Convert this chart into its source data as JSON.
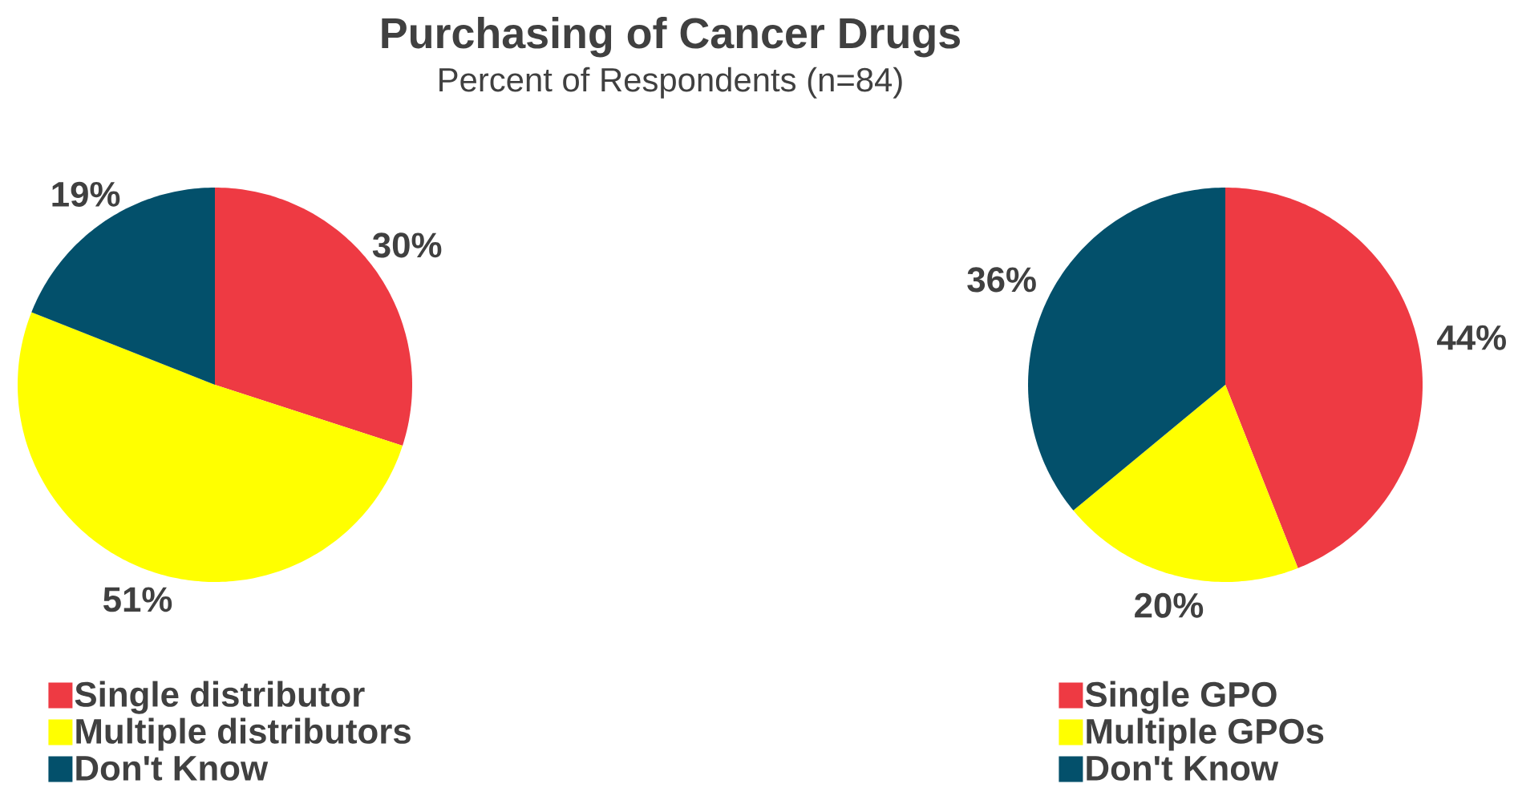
{
  "chart_data": [
    {
      "type": "pie",
      "title": "Purchasing of Cancer Drugs",
      "subtitle": "Percent of Respondents (n=84)",
      "categories": [
        "Single distributor",
        "Multiple distributors",
        "Don't Know"
      ],
      "values": [
        30,
        51,
        19
      ],
      "colors": [
        "#ee3a43",
        "#ffff00",
        "#03506b"
      ],
      "value_labels": [
        "30%",
        "51%",
        "19%"
      ],
      "legend": "bottom"
    },
    {
      "type": "pie",
      "categories": [
        "Single GPO",
        "Multiple GPOs",
        "Don't Know"
      ],
      "values": [
        44,
        20,
        36
      ],
      "colors": [
        "#ee3a43",
        "#ffff00",
        "#03506b"
      ],
      "value_labels": [
        "44%",
        "20%",
        "36%"
      ],
      "legend": "bottom"
    }
  ]
}
